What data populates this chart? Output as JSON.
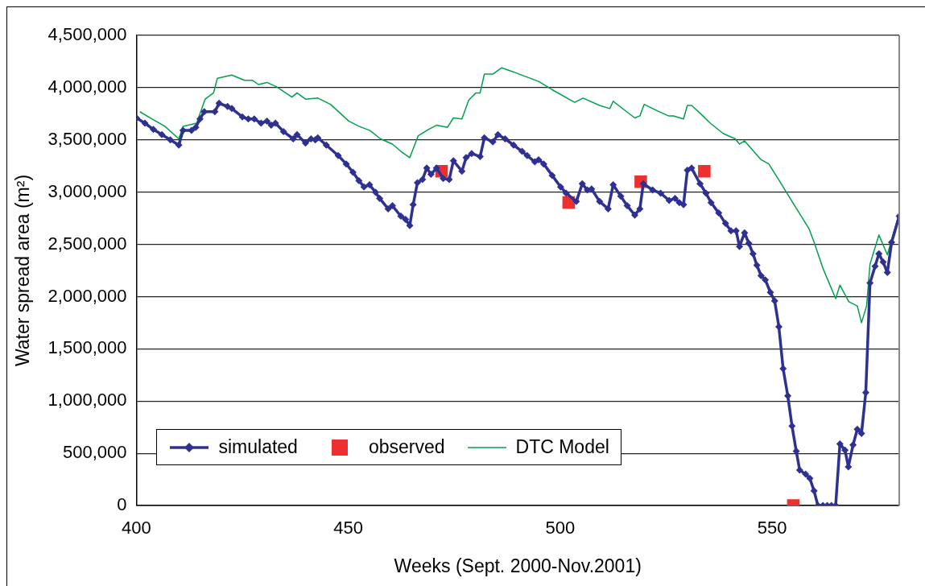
{
  "chart_data": {
    "type": "line",
    "xlabel": "Weeks (Sept. 2000-Nov.2001)",
    "ylabel": "Water spread area (m²)",
    "xlim": [
      400,
      580
    ],
    "xticks": [
      400,
      450,
      500,
      550
    ],
    "ylim": [
      0,
      4500000
    ],
    "yticks": [
      {
        "value": 0,
        "label": "0"
      },
      {
        "value": 500000,
        "label": "500,000"
      },
      {
        "value": 1000000,
        "label": "1,000,000"
      },
      {
        "value": 1500000,
        "label": "1,500,000"
      },
      {
        "value": 2000000,
        "label": "2,000,000"
      },
      {
        "value": 2500000,
        "label": "2,500,000"
      },
      {
        "value": 3000000,
        "label": "3,000,000"
      },
      {
        "value": 3500000,
        "label": "3,500,000"
      },
      {
        "value": 4000000,
        "label": "4,000,000"
      },
      {
        "value": 4500000,
        "label": "4,500,000"
      }
    ],
    "grid": "y",
    "legend": "bottom left",
    "series": [
      {
        "name": "simulated",
        "type": "line",
        "marker": "diamond",
        "color": "#2e3192",
        "x": [
          400,
          402,
          404,
          406,
          408,
          410,
          411,
          413,
          414,
          415,
          416,
          418.5,
          419.5,
          421.5,
          422.5,
          425,
          426.4,
          427.8,
          429.4,
          430.8,
          431.8,
          432.8,
          434.7,
          437,
          437.9,
          439.9,
          441.2,
          442.2,
          442.8,
          444.8,
          447.6,
          449.5,
          451.1,
          452.5,
          453.7,
          455,
          456.4,
          457.4,
          459.4,
          460.4,
          462.4,
          463.5,
          464.5,
          465.3,
          466.3,
          467.5,
          468.5,
          469.5,
          470.8,
          472.4,
          473.8,
          474.8,
          476.8,
          477.8,
          479.1,
          481.1,
          482.1,
          484.1,
          485.3,
          487,
          489,
          491,
          492.2,
          494,
          494.9,
          496.1,
          498.1,
          500.1,
          501.4,
          503.8,
          505.2,
          506.4,
          507.4,
          509.3,
          511.3,
          512.5,
          514.3,
          515.8,
          517.6,
          518.8,
          519.6,
          521.8,
          523.7,
          525.7,
          527.1,
          528.1,
          529.1,
          530,
          531,
          533,
          534.4,
          535.6,
          537.4,
          539,
          540.3,
          541.5,
          542.3,
          543.5,
          544.5,
          545.5,
          546.4,
          547.4,
          548.4,
          549.6,
          550.6,
          551.6,
          552.6,
          553.7,
          554.7,
          555.7,
          556.5,
          557.9,
          558.9,
          559.9,
          560.8,
          562,
          563,
          564,
          565,
          566,
          567.2,
          568,
          569.1,
          570.1,
          571.1,
          572.1,
          573.1,
          574.3,
          575.2,
          576.2,
          577.2,
          578.2,
          580
        ],
        "values": [
          3710000,
          3660000,
          3600000,
          3550000,
          3500000,
          3450000,
          3590000,
          3590000,
          3620000,
          3700000,
          3770000,
          3770000,
          3850000,
          3820000,
          3800000,
          3720000,
          3700000,
          3700000,
          3660000,
          3680000,
          3640000,
          3660000,
          3580000,
          3510000,
          3550000,
          3470000,
          3510000,
          3500000,
          3520000,
          3450000,
          3350000,
          3270000,
          3190000,
          3110000,
          3050000,
          3070000,
          3000000,
          2940000,
          2840000,
          2870000,
          2770000,
          2740000,
          2680000,
          2880000,
          3090000,
          3120000,
          3230000,
          3170000,
          3230000,
          3130000,
          3120000,
          3300000,
          3200000,
          3330000,
          3370000,
          3340000,
          3520000,
          3480000,
          3550000,
          3510000,
          3450000,
          3390000,
          3350000,
          3290000,
          3310000,
          3270000,
          3160000,
          3050000,
          2990000,
          2910000,
          3080000,
          3020000,
          3030000,
          2910000,
          2840000,
          3070000,
          2960000,
          2870000,
          2780000,
          2840000,
          3080000,
          3020000,
          2990000,
          2920000,
          2940000,
          2900000,
          2880000,
          3210000,
          3230000,
          3080000,
          2990000,
          2900000,
          2800000,
          2700000,
          2630000,
          2630000,
          2480000,
          2610000,
          2510000,
          2410000,
          2300000,
          2200000,
          2160000,
          2040000,
          1960000,
          1710000,
          1310000,
          1050000,
          760000,
          520000,
          340000,
          300000,
          260000,
          140000,
          0,
          0,
          0,
          0,
          0,
          590000,
          530000,
          370000,
          580000,
          730000,
          690000,
          1080000,
          2130000,
          2290000,
          2410000,
          2330000,
          2230000,
          2520000,
          2770000
        ]
      },
      {
        "name": "observed",
        "type": "scatter",
        "marker": "square",
        "color": "#ed2f2f",
        "x": [
          472,
          502,
          519,
          534,
          555
        ],
        "values": [
          3200000,
          2900000,
          3100000,
          3200000,
          0
        ]
      },
      {
        "name": "DTC Model",
        "type": "line",
        "marker": "none",
        "color": "#00a04b",
        "x": [
          400.8,
          403.7,
          406.7,
          410,
          411,
          414.2,
          416.2,
          418.2,
          419.1,
          422.5,
          425.5,
          427.4,
          428.8,
          430.8,
          433,
          436.7,
          437.9,
          439.9,
          442.8,
          445.8,
          450.1,
          452.5,
          455.1,
          457.6,
          460.4,
          462.4,
          464.5,
          466.5,
          468.9,
          470.8,
          473.4,
          474.8,
          476.8,
          478.4,
          480.1,
          481.1,
          482.1,
          484.1,
          486.2,
          489,
          491.6,
          494.9,
          498.1,
          503.4,
          505.4,
          509.3,
          511.7,
          512.5,
          517.6,
          518.8,
          519.8,
          522.8,
          525.5,
          526.7,
          529.1,
          530,
          531,
          533.4,
          535.4,
          538.5,
          541.3,
          542.3,
          543.5,
          547.4,
          549.2,
          551.4,
          554.1,
          556.7,
          558.7,
          560,
          562,
          565,
          566,
          568.1,
          570.1,
          571.1,
          572.3,
          573.1,
          575.2,
          577.2,
          580
        ],
        "values": [
          3770000,
          3700000,
          3630000,
          3510000,
          3630000,
          3660000,
          3890000,
          3950000,
          4090000,
          4120000,
          4070000,
          4070000,
          4030000,
          4050000,
          4010000,
          3910000,
          3950000,
          3890000,
          3900000,
          3840000,
          3680000,
          3630000,
          3590000,
          3510000,
          3460000,
          3390000,
          3330000,
          3540000,
          3600000,
          3640000,
          3620000,
          3710000,
          3700000,
          3880000,
          3950000,
          3950000,
          4130000,
          4130000,
          4190000,
          4150000,
          4110000,
          4060000,
          3980000,
          3860000,
          3900000,
          3830000,
          3800000,
          3870000,
          3710000,
          3730000,
          3840000,
          3780000,
          3730000,
          3730000,
          3700000,
          3830000,
          3830000,
          3740000,
          3660000,
          3560000,
          3510000,
          3460000,
          3490000,
          3310000,
          3270000,
          3130000,
          2950000,
          2780000,
          2650000,
          2510000,
          2270000,
          1980000,
          2110000,
          1950000,
          1910000,
          1750000,
          1910000,
          2310000,
          2590000,
          2400000,
          2800000
        ]
      }
    ]
  }
}
